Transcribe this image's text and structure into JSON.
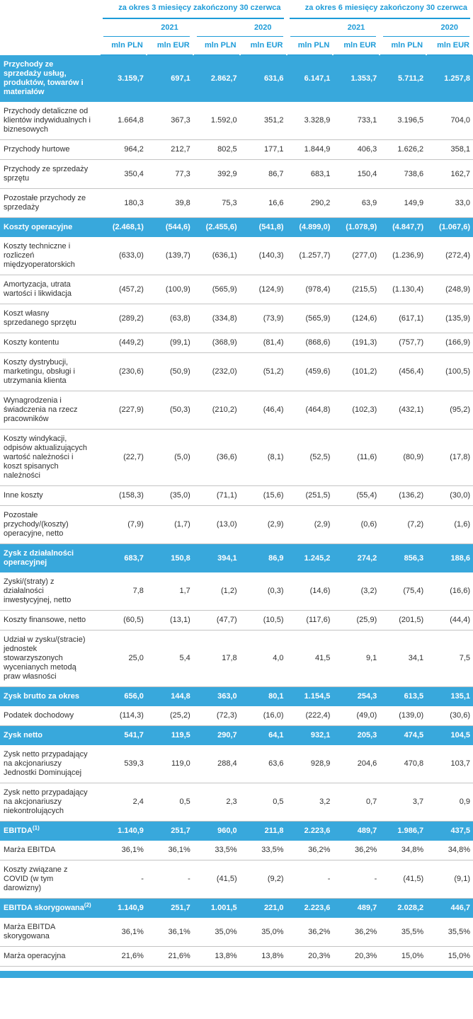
{
  "colors": {
    "accent": "#1d9bd8",
    "highlight_bg": "#38a8dc",
    "row_border": "#c4c4c4"
  },
  "header": {
    "groups": [
      "za okres 3 miesięcy zakończony 30 czerwca",
      "za okres 6 miesięcy zakończony 30 czerwca"
    ],
    "years": [
      "2021",
      "2020",
      "2021",
      "2020"
    ],
    "units": [
      "mln PLN",
      "mln EUR",
      "mln PLN",
      "mln EUR",
      "mln PLN",
      "mln EUR",
      "mln PLN",
      "mln EUR"
    ]
  },
  "rows": [
    {
      "label": "Przychody ze sprzedaży usług, produktów, towarów i materiałów",
      "highlight": true,
      "values": [
        "3.159,7",
        "697,1",
        "2.862,7",
        "631,6",
        "6.147,1",
        "1.353,7",
        "5.711,2",
        "1.257,8"
      ]
    },
    {
      "label": "Przychody detaliczne od klientów indywidualnych i biznesowych",
      "highlight": false,
      "values": [
        "1.664,8",
        "367,3",
        "1.592,0",
        "351,2",
        "3.328,9",
        "733,1",
        "3.196,5",
        "704,0"
      ]
    },
    {
      "label": "Przychody hurtowe",
      "highlight": false,
      "values": [
        "964,2",
        "212,7",
        "802,5",
        "177,1",
        "1.844,9",
        "406,3",
        "1.626,2",
        "358,1"
      ]
    },
    {
      "label": "Przychody ze sprzedaży sprzętu",
      "highlight": false,
      "values": [
        "350,4",
        "77,3",
        "392,9",
        "86,7",
        "683,1",
        "150,4",
        "738,6",
        "162,7"
      ]
    },
    {
      "label": "Pozostałe przychody ze sprzedaży",
      "highlight": false,
      "values": [
        "180,3",
        "39,8",
        "75,3",
        "16,6",
        "290,2",
        "63,9",
        "149,9",
        "33,0"
      ]
    },
    {
      "label": "Koszty operacyjne",
      "highlight": true,
      "values": [
        "(2.468,1)",
        "(544,6)",
        "(2.455,6)",
        "(541,8)",
        "(4.899,0)",
        "(1.078,9)",
        "(4.847,7)",
        "(1.067,6)"
      ]
    },
    {
      "label": "Koszty techniczne i rozliczeń międzyoperatorskich",
      "highlight": false,
      "values": [
        "(633,0)",
        "(139,7)",
        "(636,1)",
        "(140,3)",
        "(1.257,7)",
        "(277,0)",
        "(1.236,9)",
        "(272,4)"
      ]
    },
    {
      "label": "Amortyzacja, utrata wartości i likwidacja",
      "highlight": false,
      "values": [
        "(457,2)",
        "(100,9)",
        "(565,9)",
        "(124,9)",
        "(978,4)",
        "(215,5)",
        "(1.130,4)",
        "(248,9)"
      ]
    },
    {
      "label": "Koszt własny sprzedanego sprzętu",
      "highlight": false,
      "values": [
        "(289,2)",
        "(63,8)",
        "(334,8)",
        "(73,9)",
        "(565,9)",
        "(124,6)",
        "(617,1)",
        "(135,9)"
      ]
    },
    {
      "label": "Koszty kontentu",
      "highlight": false,
      "values": [
        "(449,2)",
        "(99,1)",
        "(368,9)",
        "(81,4)",
        "(868,6)",
        "(191,3)",
        "(757,7)",
        "(166,9)"
      ]
    },
    {
      "label": "Koszty dystrybucji, marketingu, obsługi i utrzymania klienta",
      "highlight": false,
      "values": [
        "(230,6)",
        "(50,9)",
        "(232,0)",
        "(51,2)",
        "(459,6)",
        "(101,2)",
        "(456,4)",
        "(100,5)"
      ]
    },
    {
      "label": "Wynagrodzenia i świadczenia na rzecz pracowników",
      "highlight": false,
      "values": [
        "(227,9)",
        "(50,3)",
        "(210,2)",
        "(46,4)",
        "(464,8)",
        "(102,3)",
        "(432,1)",
        "(95,2)"
      ]
    },
    {
      "label": "Koszty windykacji, odpisów aktualizujących wartość należności i koszt spisanych należności",
      "highlight": false,
      "values": [
        "(22,7)",
        "(5,0)",
        "(36,6)",
        "(8,1)",
        "(52,5)",
        "(11,6)",
        "(80,9)",
        "(17,8)"
      ]
    },
    {
      "label": "Inne koszty",
      "highlight": false,
      "values": [
        "(158,3)",
        "(35,0)",
        "(71,1)",
        "(15,6)",
        "(251,5)",
        "(55,4)",
        "(136,2)",
        "(30,0)"
      ]
    },
    {
      "label": "Pozostałe przychody/(koszty) operacyjne, netto",
      "highlight": false,
      "values": [
        "(7,9)",
        "(1,7)",
        "(13,0)",
        "(2,9)",
        "(2,9)",
        "(0,6)",
        "(7,2)",
        "(1,6)"
      ]
    },
    {
      "label": "Zysk z działalności operacyjnej",
      "highlight": true,
      "values": [
        "683,7",
        "150,8",
        "394,1",
        "86,9",
        "1.245,2",
        "274,2",
        "856,3",
        "188,6"
      ]
    },
    {
      "label": "Zyski/(straty) z działalności inwestycyjnej, netto",
      "highlight": false,
      "values": [
        "7,8",
        "1,7",
        "(1,2)",
        "(0,3)",
        "(14,6)",
        "(3,2)",
        "(75,4)",
        "(16,6)"
      ]
    },
    {
      "label": "Koszty finansowe, netto",
      "highlight": false,
      "values": [
        "(60,5)",
        "(13,1)",
        "(47,7)",
        "(10,5)",
        "(117,6)",
        "(25,9)",
        "(201,5)",
        "(44,4)"
      ]
    },
    {
      "label": "Udział w zysku/(stracie) jednostek stowarzyszonych wycenianych metodą praw własności",
      "highlight": false,
      "values": [
        "25,0",
        "5,4",
        "17,8",
        "4,0",
        "41,5",
        "9,1",
        "34,1",
        "7,5"
      ]
    },
    {
      "label": "Zysk brutto za okres",
      "highlight": true,
      "values": [
        "656,0",
        "144,8",
        "363,0",
        "80,1",
        "1.154,5",
        "254,3",
        "613,5",
        "135,1"
      ]
    },
    {
      "label": "Podatek dochodowy",
      "highlight": false,
      "values": [
        "(114,3)",
        "(25,2)",
        "(72,3)",
        "(16,0)",
        "(222,4)",
        "(49,0)",
        "(139,0)",
        "(30,6)"
      ]
    },
    {
      "label": "Zysk netto",
      "highlight": true,
      "values": [
        "541,7",
        "119,5",
        "290,7",
        "64,1",
        "932,1",
        "205,3",
        "474,5",
        "104,5"
      ]
    },
    {
      "label": "Zysk netto przypadający na akcjonariuszy Jednostki Dominującej",
      "highlight": false,
      "values": [
        "539,3",
        "119,0",
        "288,4",
        "63,6",
        "928,9",
        "204,6",
        "470,8",
        "103,7"
      ]
    },
    {
      "label": "Zysk netto przypadający na akcjonariuszy niekontrolujących",
      "highlight": false,
      "values": [
        "2,4",
        "0,5",
        "2,3",
        "0,5",
        "3,2",
        "0,7",
        "3,7",
        "0,9"
      ]
    },
    {
      "label": "EBITDA",
      "sup": "(1)",
      "highlight": true,
      "values": [
        "1.140,9",
        "251,7",
        "960,0",
        "211,8",
        "2.223,6",
        "489,7",
        "1.986,7",
        "437,5"
      ]
    },
    {
      "label": "Marża EBITDA",
      "highlight": false,
      "values": [
        "36,1%",
        "36,1%",
        "33,5%",
        "33,5%",
        "36,2%",
        "36,2%",
        "34,8%",
        "34,8%"
      ]
    },
    {
      "label": "Koszty związane z COVID (w tym darowizny)",
      "highlight": false,
      "values": [
        "-",
        "-",
        "(41,5)",
        "(9,2)",
        "-",
        "-",
        "(41,5)",
        "(9,1)"
      ]
    },
    {
      "label": "EBITDA skorygowana",
      "sup": "(2)",
      "highlight": true,
      "values": [
        "1.140,9",
        "251,7",
        "1.001,5",
        "221,0",
        "2.223,6",
        "489,7",
        "2.028,2",
        "446,7"
      ]
    },
    {
      "label": "Marża EBITDA skorygowana",
      "highlight": false,
      "values": [
        "36,1%",
        "36,1%",
        "35,0%",
        "35,0%",
        "36,2%",
        "36,2%",
        "35,5%",
        "35,5%"
      ]
    },
    {
      "label": "Marża operacyjna",
      "highlight": false,
      "values": [
        "21,6%",
        "21,6%",
        "13,8%",
        "13,8%",
        "20,3%",
        "20,3%",
        "15,0%",
        "15,0%"
      ]
    }
  ]
}
